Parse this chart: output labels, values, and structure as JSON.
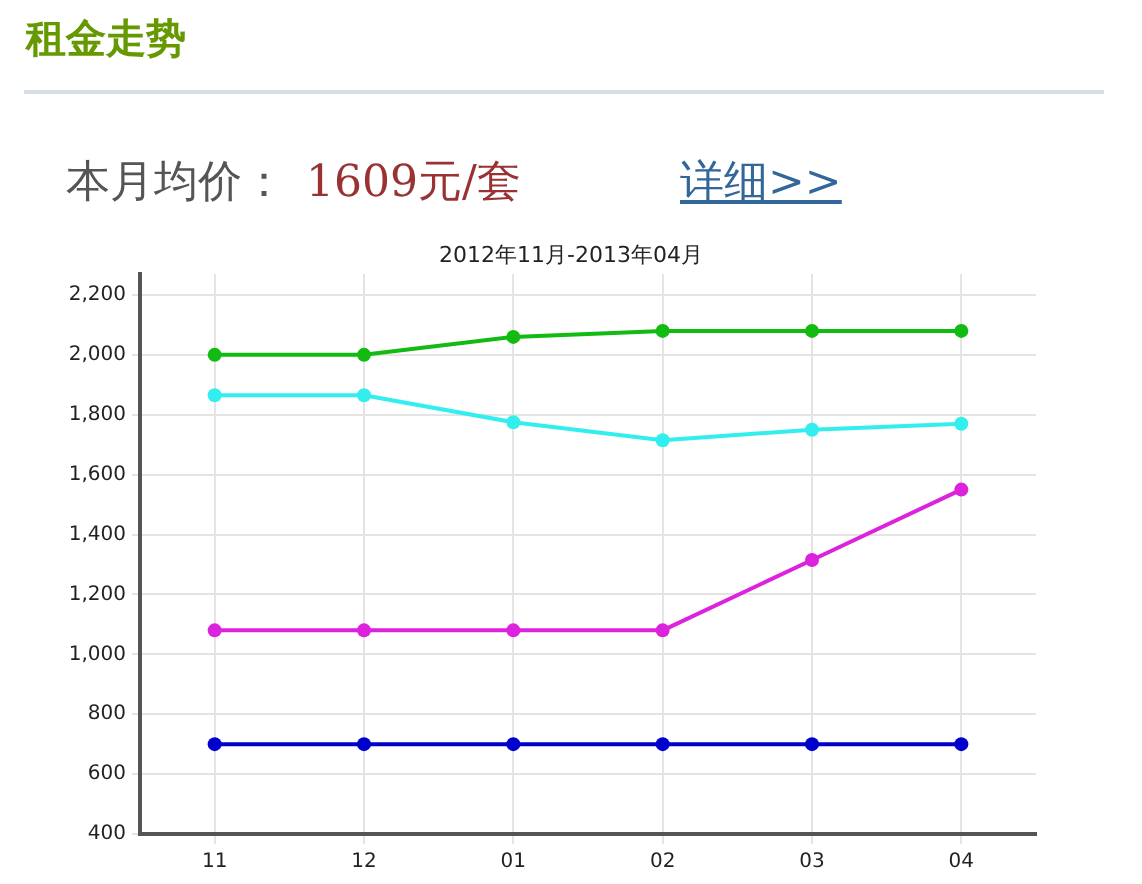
{
  "chart_data": {
    "type": "line",
    "title": "租金走势",
    "subtitle": "2012年11月-2013年04月",
    "annotations": [
      "本月均价：",
      "1609元/套",
      "详细>>"
    ],
    "categories": [
      "11",
      "12",
      "01",
      "02",
      "03",
      "04"
    ],
    "series": [
      {
        "color": "#11bb11",
        "values": [
          2000,
          2000,
          2060,
          2080,
          2080,
          2080
        ]
      },
      {
        "color": "#33eeee",
        "values": [
          1865,
          1865,
          1775,
          1715,
          1750,
          1770
        ]
      },
      {
        "color": "#dd22dd",
        "values": [
          1080,
          1080,
          1080,
          1080,
          1315,
          1550
        ]
      },
      {
        "color": "#0000cc",
        "values": [
          700,
          700,
          700,
          700,
          700,
          700
        ]
      }
    ],
    "ylim": [
      400,
      2270
    ],
    "yticks": [
      400,
      600,
      800,
      {
        "value": 1000,
        "label": "1,000"
      },
      {
        "value": 1200,
        "label": "1,200"
      },
      {
        "value": 1400,
        "label": "1,400"
      },
      {
        "value": 1600,
        "label": "1,600"
      },
      {
        "value": 1800,
        "label": "1,800"
      },
      {
        "value": 2000,
        "label": "2,000"
      },
      {
        "value": 2200,
        "label": "2,200"
      }
    ],
    "grid": true,
    "legend": false,
    "marker": "circle",
    "line_style": "solid"
  }
}
